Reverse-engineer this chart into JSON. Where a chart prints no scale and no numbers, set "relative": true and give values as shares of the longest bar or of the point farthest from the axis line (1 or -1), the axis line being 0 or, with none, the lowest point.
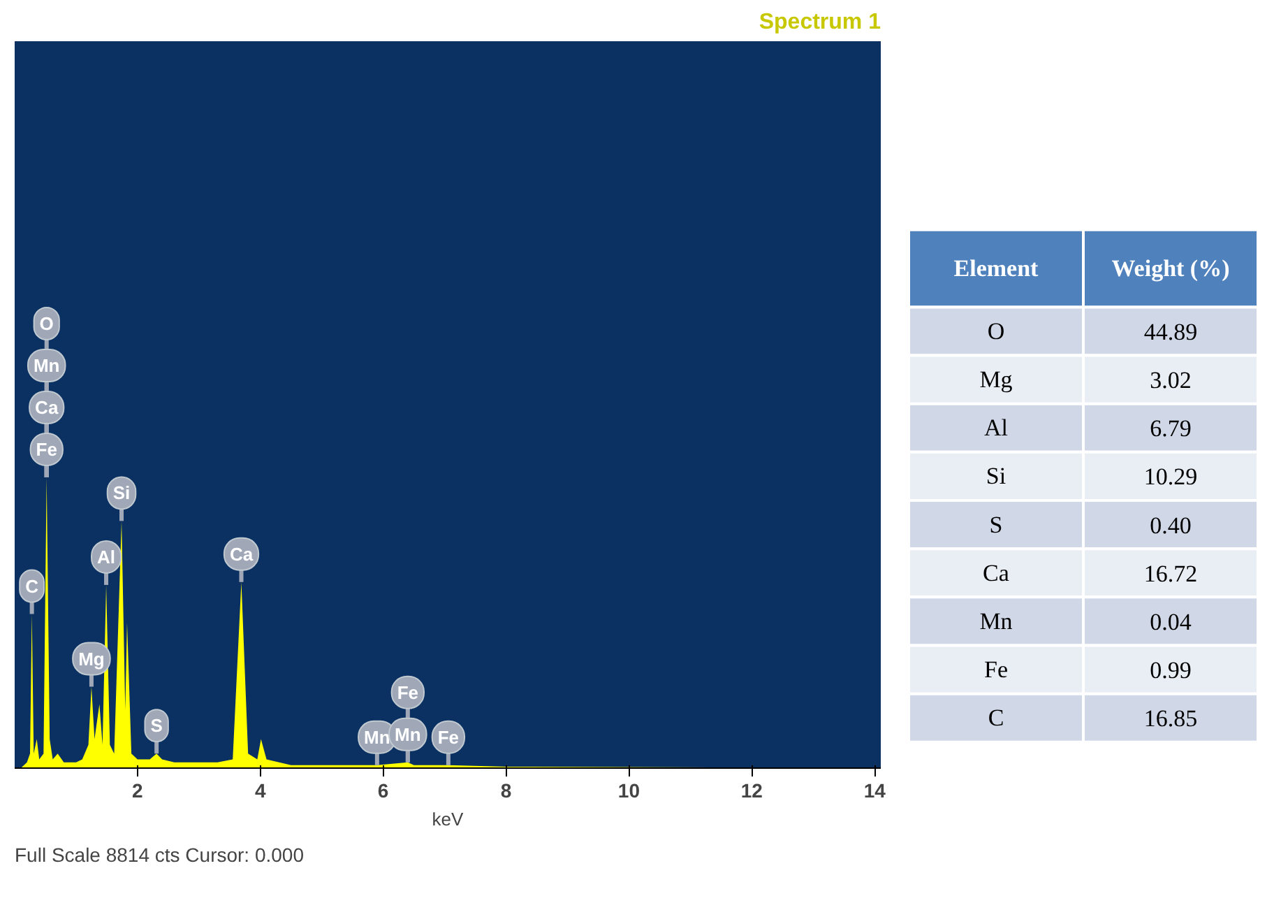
{
  "chart_data": [
    {
      "type": "area",
      "title": "Spectrum 1",
      "xlabel": "keV",
      "relative": true,
      "color": "#ffff00",
      "x": [
        0.1,
        0.2,
        0.25,
        0.28,
        0.31,
        0.36,
        0.4,
        0.47,
        0.52,
        0.57,
        0.62,
        0.7,
        0.8,
        1.0,
        1.1,
        1.2,
        1.25,
        1.3,
        1.38,
        1.43,
        1.49,
        1.55,
        1.62,
        1.74,
        1.8,
        1.83,
        1.9,
        2.0,
        2.2,
        2.31,
        2.4,
        2.6,
        3.0,
        3.3,
        3.55,
        3.69,
        3.8,
        3.95,
        4.01,
        4.1,
        4.5,
        5.0,
        5.9,
        6.4,
        6.5,
        7.06,
        8.0,
        14.0
      ],
      "values": [
        0,
        0.02,
        0.05,
        0.53,
        0.05,
        0.1,
        0.03,
        0.05,
        1.0,
        0.1,
        0.03,
        0.05,
        0.02,
        0.02,
        0.03,
        0.08,
        0.28,
        0.1,
        0.22,
        0.08,
        0.63,
        0.08,
        0.05,
        0.85,
        0.2,
        0.5,
        0.05,
        0.03,
        0.03,
        0.05,
        0.03,
        0.02,
        0.02,
        0.02,
        0.03,
        0.64,
        0.05,
        0.03,
        0.1,
        0.03,
        0.01,
        0.01,
        0.01,
        0.02,
        0.01,
        0.01,
        0.005,
        0
      ],
      "xlim": [
        0,
        14.1
      ],
      "xticks": [
        2,
        4,
        6,
        8,
        10,
        12,
        14
      ],
      "annotations": [
        {
          "text": "O",
          "x": 0.52,
          "y": 1.0
        },
        {
          "text": "Mn",
          "x": 0.52,
          "y": 1.0
        },
        {
          "text": "Ca",
          "x": 0.52,
          "y": 1.0
        },
        {
          "text": "Fe",
          "x": 0.52,
          "y": 1.0
        },
        {
          "text": "C",
          "x": 0.28,
          "y": 0.53
        },
        {
          "text": "Mg",
          "x": 1.25,
          "y": 0.28
        },
        {
          "text": "Al",
          "x": 1.49,
          "y": 0.63
        },
        {
          "text": "Si",
          "x": 1.74,
          "y": 0.85
        },
        {
          "text": "Ca",
          "x": 3.69,
          "y": 0.64
        },
        {
          "text": "S",
          "x": 2.31,
          "y": 0.05
        },
        {
          "text": "Mn",
          "x": 5.9,
          "y": 0.01
        },
        {
          "text": "Fe",
          "x": 6.4,
          "y": 0.02
        },
        {
          "text": "Mn",
          "x": 6.4,
          "y": 0.02
        },
        {
          "text": "Fe",
          "x": 7.06,
          "y": 0.01
        },
        "Full Scale 8814 cts Cursor: 0.000"
      ]
    },
    {
      "type": "other",
      "xlabel": "Element",
      "ylabel": "Weight (%)",
      "categories": [
        "O",
        "Mg",
        "Al",
        "Si",
        "S",
        "Ca",
        "Mn",
        "Fe",
        "C"
      ],
      "value_labels": [
        "44.89",
        "3.02",
        "6.79",
        "10.29",
        "0.40",
        "16.72",
        "0.04",
        "0.99",
        "16.85"
      ]
    }
  ]
}
